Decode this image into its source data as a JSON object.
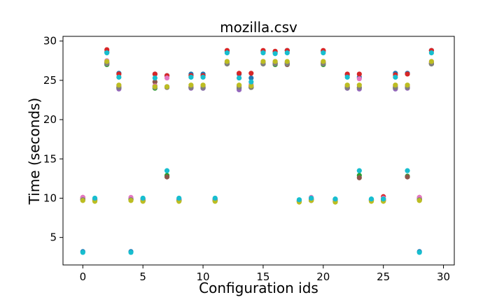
{
  "chart_data": {
    "type": "scatter",
    "title": "mozilla.csv",
    "xlabel": "Configuration ids",
    "ylabel": "Time (seconds)",
    "xlim": [
      -1.65,
      30.9
    ],
    "ylim": [
      1.5,
      30.6
    ],
    "xticks": [
      0,
      5,
      10,
      15,
      20,
      25,
      30
    ],
    "yticks": [
      5,
      10,
      15,
      20,
      25,
      30
    ],
    "grid": false,
    "legend": "none",
    "palette": [
      "#1f77b4",
      "#ff7f0e",
      "#2ca02c",
      "#d62728",
      "#9467bd",
      "#8c564b",
      "#e377c2",
      "#7f7f7f",
      "#bcbd22",
      "#17becf"
    ],
    "series": [
      {
        "x": [
          0,
          1,
          2,
          3,
          4,
          5,
          6,
          7,
          8,
          9,
          10,
          11,
          12,
          13,
          14,
          15,
          16,
          17,
          18,
          19,
          20,
          21,
          22,
          23,
          24,
          25,
          26,
          27,
          28,
          29
        ],
        "y": [
          3.2,
          9.8,
          28.6,
          25.9,
          3.2,
          9.9,
          25.8,
          25.6,
          9.8,
          25.8,
          25.8,
          9.8,
          28.7,
          25.8,
          25.3,
          28.7,
          28.6,
          28.8,
          9.7,
          9.9,
          28.7,
          9.8,
          25.7,
          25.4,
          9.8,
          9.9,
          25.9,
          25.9,
          3.2,
          28.8
        ]
      },
      {
        "x": [
          0,
          1,
          2,
          3,
          4,
          5,
          6,
          7,
          8,
          9,
          10,
          11,
          12,
          13,
          14,
          15,
          16,
          17,
          18,
          19,
          20,
          21,
          22,
          23,
          24,
          25,
          26,
          27,
          28,
          29
        ],
        "y": [
          10.0,
          9.7,
          27.1,
          24.2,
          9.9,
          9.7,
          24.3,
          24.1,
          9.7,
          24.2,
          24.1,
          9.7,
          27.2,
          24.1,
          24.3,
          27.2,
          27.1,
          27.2,
          9.6,
          9.8,
          27.1,
          9.6,
          24.2,
          24.1,
          9.7,
          9.8,
          24.2,
          24.2,
          9.9,
          27.2
        ]
      },
      {
        "x": [
          0,
          1,
          2,
          3,
          4,
          5,
          6,
          7,
          8,
          9,
          10,
          11,
          12,
          13,
          14,
          15,
          16,
          17,
          18,
          19,
          20,
          21,
          22,
          23,
          24,
          25,
          26,
          27,
          28,
          29
        ],
        "y": [
          9.8,
          9.7,
          27.0,
          24.0,
          9.8,
          9.7,
          24.0,
          12.9,
          9.7,
          24.1,
          24.0,
          9.7,
          27.1,
          24.0,
          24.1,
          27.1,
          27.0,
          27.1,
          9.6,
          9.8,
          27.0,
          9.6,
          24.0,
          12.9,
          9.7,
          9.7,
          24.0,
          12.8,
          9.8,
          27.1
        ]
      },
      {
        "x": [
          0,
          1,
          2,
          3,
          4,
          5,
          6,
          7,
          8,
          9,
          10,
          11,
          12,
          13,
          14,
          15,
          16,
          17,
          18,
          19,
          20,
          21,
          22,
          23,
          24,
          25,
          26,
          27,
          28,
          29
        ],
        "y": [
          10.1,
          9.9,
          28.9,
          25.8,
          10.0,
          9.8,
          25.8,
          25.6,
          9.8,
          25.6,
          25.6,
          9.9,
          28.8,
          25.9,
          25.9,
          28.8,
          28.7,
          28.8,
          9.7,
          10.0,
          28.8,
          9.8,
          25.8,
          25.8,
          9.8,
          10.2,
          25.7,
          25.8,
          10.1,
          28.8
        ]
      },
      {
        "x": [
          0,
          1,
          2,
          3,
          4,
          5,
          6,
          7,
          8,
          9,
          10,
          11,
          12,
          13,
          14,
          15,
          16,
          17,
          18,
          19,
          20,
          21,
          22,
          23,
          24,
          25,
          26,
          27,
          28,
          29
        ],
        "y": [
          9.9,
          9.8,
          27.3,
          23.9,
          9.9,
          9.7,
          24.2,
          24.2,
          9.8,
          24.0,
          24.0,
          9.8,
          27.2,
          23.8,
          24.2,
          27.2,
          27.2,
          27.2,
          9.6,
          9.8,
          27.3,
          9.7,
          24.0,
          23.9,
          9.7,
          9.8,
          23.9,
          24.0,
          9.9,
          27.2
        ]
      },
      {
        "x": [
          0,
          1,
          2,
          3,
          4,
          5,
          6,
          7,
          8,
          9,
          10,
          11,
          12,
          13,
          14,
          15,
          16,
          17,
          18,
          19,
          20,
          21,
          22,
          23,
          24,
          25,
          26,
          27,
          28,
          29
        ],
        "y": [
          9.8,
          9.7,
          27.2,
          24.1,
          9.8,
          9.7,
          24.8,
          12.7,
          9.7,
          24.1,
          24.2,
          9.7,
          27.1,
          24.3,
          24.1,
          27.1,
          27.2,
          27.0,
          9.6,
          9.7,
          27.2,
          9.6,
          24.1,
          12.6,
          9.7,
          9.7,
          24.1,
          12.7,
          9.8,
          27.1
        ]
      },
      {
        "x": [
          0,
          1,
          2,
          3,
          4,
          5,
          6,
          7,
          8,
          9,
          10,
          11,
          12,
          13,
          14,
          15,
          16,
          17,
          18,
          19,
          20,
          21,
          22,
          23,
          24,
          25,
          26,
          27,
          28,
          29
        ],
        "y": [
          10.1,
          9.9,
          27.5,
          24.3,
          10.1,
          9.8,
          24.3,
          25.3,
          9.9,
          24.2,
          24.3,
          9.9,
          27.4,
          25.3,
          24.5,
          27.4,
          27.4,
          27.3,
          9.7,
          10.1,
          27.4,
          9.8,
          24.3,
          25.2,
          9.8,
          10.0,
          24.3,
          24.3,
          10.1,
          27.4
        ]
      },
      {
        "x": [
          0,
          1,
          2,
          3,
          4,
          5,
          6,
          7,
          8,
          9,
          10,
          11,
          12,
          13,
          14,
          15,
          16,
          17,
          18,
          19,
          20,
          21,
          22,
          23,
          24,
          25,
          26,
          27,
          28,
          29
        ],
        "y": [
          9.8,
          9.7,
          27.1,
          24.1,
          9.8,
          9.7,
          24.1,
          24.1,
          9.7,
          24.1,
          24.1,
          9.7,
          27.1,
          24.1,
          24.1,
          27.1,
          27.1,
          27.1,
          9.6,
          9.8,
          27.1,
          9.6,
          24.1,
          24.1,
          9.7,
          9.7,
          24.1,
          24.1,
          9.8,
          27.1
        ]
      },
      {
        "x": [
          0,
          1,
          2,
          3,
          4,
          5,
          6,
          7,
          8,
          9,
          10,
          11,
          12,
          13,
          14,
          15,
          16,
          17,
          18,
          19,
          20,
          21,
          22,
          23,
          24,
          25,
          26,
          27,
          28,
          29
        ],
        "y": [
          9.7,
          9.6,
          27.4,
          24.4,
          9.7,
          9.6,
          24.2,
          24.2,
          9.6,
          24.4,
          24.4,
          9.6,
          27.4,
          24.4,
          24.3,
          27.4,
          27.4,
          27.4,
          9.5,
          9.7,
          27.4,
          9.5,
          24.4,
          24.4,
          9.6,
          9.6,
          24.4,
          24.4,
          9.7,
          27.4
        ]
      },
      {
        "x": [
          0,
          1,
          2,
          3,
          4,
          5,
          6,
          7,
          8,
          9,
          10,
          11,
          12,
          13,
          14,
          15,
          16,
          17,
          18,
          19,
          20,
          21,
          22,
          23,
          24,
          25,
          26,
          27,
          28,
          29
        ],
        "y": [
          3.1,
          10.0,
          28.5,
          25.4,
          3.1,
          10.0,
          25.3,
          13.5,
          10.0,
          25.4,
          25.4,
          10.0,
          28.5,
          25.3,
          24.8,
          28.5,
          28.4,
          28.5,
          9.8,
          10.0,
          28.5,
          9.9,
          25.4,
          13.5,
          9.9,
          9.9,
          25.4,
          13.5,
          3.1,
          28.5
        ]
      }
    ]
  }
}
